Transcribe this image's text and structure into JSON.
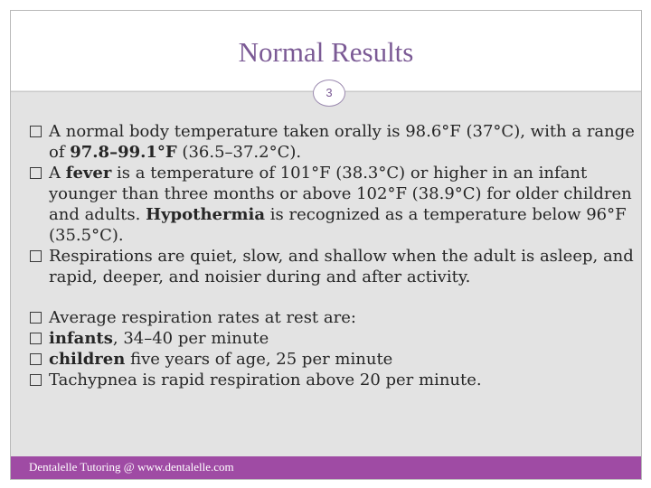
{
  "slide": {
    "title": "Normal Results",
    "page_number": "3",
    "footer_text": "Dentalelle Tutoring @ www.dentalelle.com"
  },
  "bullets": [
    {
      "segments": [
        {
          "text": "A normal body temperature taken orally is 98.6°F (37°C), with a range of ",
          "bold": false
        },
        {
          "text": "97.8–99.1°F",
          "bold": true
        },
        {
          "text": " (36.5–37.2°C).",
          "bold": false
        }
      ]
    },
    {
      "segments": [
        {
          "text": "A ",
          "bold": false
        },
        {
          "text": "fever",
          "bold": true
        },
        {
          "text": " is a temperature of 101°F (38.3°C) or higher in an infant younger than three months or above 102°F (38.9°C) for older children and adults. ",
          "bold": false
        },
        {
          "text": "Hypothermia",
          "bold": true
        },
        {
          "text": " is recognized as a temperature below 96°F (35.5°C).",
          "bold": false
        }
      ]
    },
    {
      "segments": [
        {
          "text": "Respirations are quiet, slow, and shallow when the adult is asleep, and rapid, deeper, and noisier during and after activity.",
          "bold": false
        }
      ]
    },
    {
      "segments": [
        {
          "text": "Average respiration rates at rest are:",
          "bold": false
        }
      ]
    },
    {
      "segments": [
        {
          "text": "infants",
          "bold": true
        },
        {
          "text": ", 34–40 per minute",
          "bold": false
        }
      ]
    },
    {
      "segments": [
        {
          "text": "children",
          "bold": true
        },
        {
          "text": " five years of age, 25 per minute",
          "bold": false
        }
      ]
    },
    {
      "segments": [
        {
          "text": "Tachypnea is rapid respiration above 20 per minute.",
          "bold": false
        }
      ]
    }
  ],
  "colors": {
    "title": "#7b5a95",
    "footer": "#9f4ba4",
    "content_bg": "#e3e3e3"
  }
}
